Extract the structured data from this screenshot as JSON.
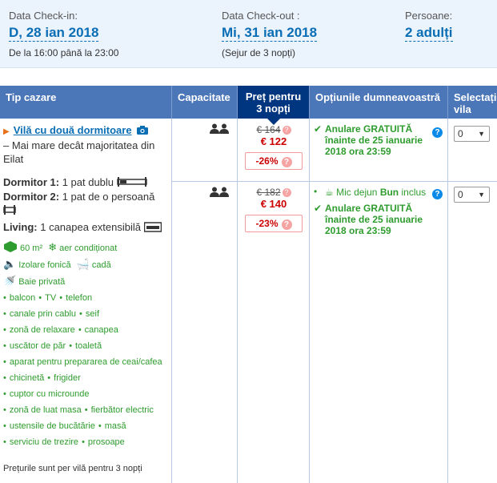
{
  "checkin": {
    "label": "Data Check-in:",
    "value": "D, 28 ian 2018",
    "sub": "De la 16:00 până la 23:00"
  },
  "checkout": {
    "label": "Data Check-out :",
    "value": "Mi, 31 ian 2018",
    "sub": "(Sejur de 3 nopți)"
  },
  "guests": {
    "label": "Persoane:",
    "value": "2 adulți"
  },
  "headers": {
    "type": "Tip cazare",
    "capacity": "Capacitate",
    "price": "Preț pentru 3 nopți",
    "options": "Opțiunile dumneavoastră",
    "select": "Selectați vila"
  },
  "room": {
    "name": "Vilă cu două dormitoare",
    "description": "– Mai mare decât majoritatea din Eilat",
    "bed1_label": "Dormitor 1:",
    "bed1_value": "1 pat dublu",
    "bed2_label": "Dormitor 2:",
    "bed2_value": "1 pat de o persoană",
    "living_label": "Living:",
    "living_value": "1 canapea extensibilă",
    "area": "60 m²",
    "ac": "aer condiționat",
    "soundproof": "Izolare fonică",
    "bath": "cadă",
    "private_bath": "Baie privată",
    "facilities": [
      [
        "balcon",
        "TV",
        "telefon"
      ],
      [
        "canale prin cablu",
        "seif"
      ],
      [
        "zonă de relaxare",
        "canapea"
      ],
      [
        "uscător de păr",
        "toaletă"
      ],
      [
        "aparat pentru prepararea de ceai/cafea"
      ],
      [
        "chicinetă",
        "frigider"
      ],
      [
        "cuptor cu microunde"
      ],
      [
        "zonă de luat masa",
        "fierbător electric"
      ],
      [
        "ustensile de bucătărie",
        "masă"
      ],
      [
        "serviciu de trezire",
        "prosoape"
      ]
    ],
    "note": "Prețurile sunt per vilă pentru 3 nopți"
  },
  "offers": [
    {
      "old_price": "€ 164",
      "new_price": "€ 122",
      "discount": "-26%",
      "cancel_text": "Anulare GRATUITĂ înainte de 25 ianuarie 2018 ora 23:59",
      "select_value": "0"
    },
    {
      "old_price": "€ 182",
      "new_price": "€ 140",
      "discount": "-23%",
      "breakfast_prefix": "Mic dejun",
      "breakfast_bold": "Bun",
      "breakfast_suffix": "inclus",
      "cancel_text": "Anulare GRATUITĂ înainte de 25 ianuarie 2018 ora 23:59",
      "select_value": "0"
    }
  ],
  "colors": {
    "header": "#4b76b8",
    "price_header": "#003580",
    "link": "#0a6eb4",
    "green": "#2e9c2e",
    "red": "#cc0000",
    "summary_bg": "#ebf3fd"
  },
  "icons": {
    "people": "people-icon",
    "camera": "camera-icon",
    "check": "check-icon",
    "info": "info-icon",
    "coffee": "coffee-icon"
  }
}
